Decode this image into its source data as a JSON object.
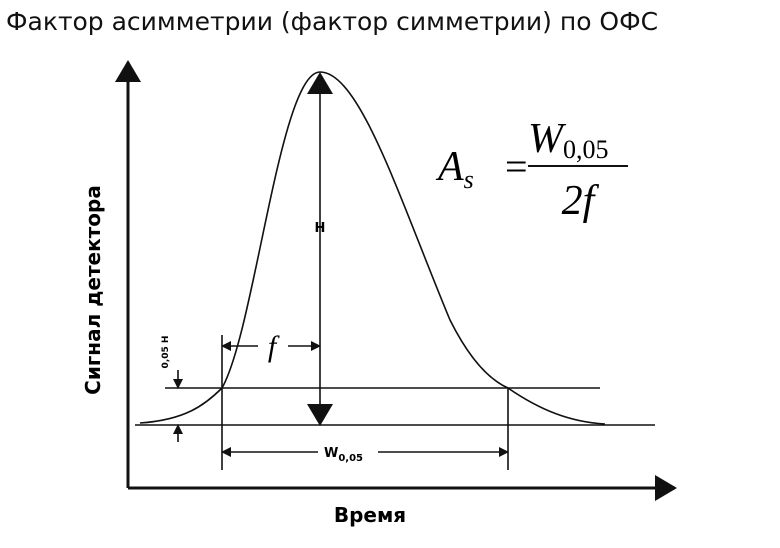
{
  "title": "Фактор асимметрии (фактор симметрии) по ОФС",
  "axes": {
    "y_label": "Сигнал детектора",
    "x_label": "Время"
  },
  "labels": {
    "height": "H",
    "fraction": "0,05 H",
    "half_width": "f",
    "width": {
      "main": "W",
      "sub": "0,05"
    }
  },
  "formula": {
    "lhs": "A",
    "lhs_sub": "s",
    "equals": "=",
    "numerator": "W",
    "numerator_sub": "0,05",
    "denominator": "2f"
  }
}
